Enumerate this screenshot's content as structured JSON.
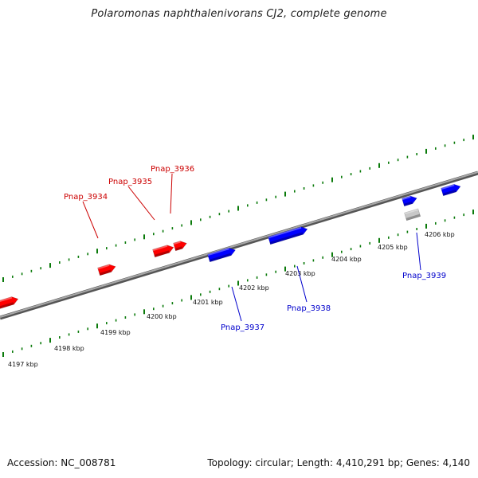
{
  "title": "Polaromonas naphthalenivorans CJ2, complete genome",
  "footer": {
    "accession": "Accession: NC_008781",
    "summary": "Topology: circular; Length: 4,410,291 bp; Genes: 4,140"
  },
  "colors": {
    "forward_gene": "#ff0000",
    "reverse_gene": "#0000ff",
    "other_feature": "#c8c8c8",
    "ticks": "#0a7a0a",
    "backbone": "#808080",
    "forward_label": "#cc0000",
    "reverse_label": "#0000cc"
  },
  "kbp_labels": [
    "4197 kbp",
    "4198 kbp",
    "4199 kbp",
    "4200 kbp",
    "4201 kbp",
    "4202 kbp",
    "4203 kbp",
    "4204 kbp",
    "4205 kbp",
    "4206 kbp"
  ],
  "gene_labels": [
    {
      "text": "Pnap_3934",
      "strand": "forward"
    },
    {
      "text": "Pnap_3935",
      "strand": "forward"
    },
    {
      "text": "Pnap_3936",
      "strand": "forward"
    },
    {
      "text": "Pnap_3937",
      "strand": "reverse"
    },
    {
      "text": "Pnap_3938",
      "strand": "reverse"
    },
    {
      "text": "Pnap_3939",
      "strand": "reverse"
    }
  ]
}
